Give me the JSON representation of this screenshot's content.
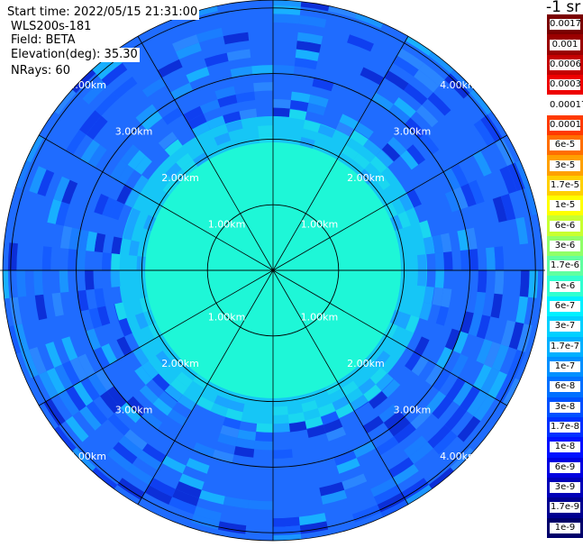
{
  "header": {
    "start_time": "Start time: 2022/05/15 21:31:00",
    "device": "WLS200s-181",
    "field": "Field: BETA",
    "elevation": "Elevation(deg): 35.30",
    "nrays": "NRays: 60"
  },
  "colorbar": {
    "units": "-1 sr",
    "labels": [
      "0.0017",
      "0.001",
      "0.0006",
      "0.0003",
      "0.00017",
      "0.0001",
      "6e-5",
      "3e-5",
      "1.7e-5",
      "1e-5",
      "6e-6",
      "3e-6",
      "1.7e-6",
      "1e-6",
      "6e-7",
      "3e-7",
      "1.7e-7",
      "1e-7",
      "6e-8",
      "3e-8",
      "1.7e-8",
      "1e-8",
      "6e-9",
      "3e-9",
      "1.7e-9",
      "1e-9"
    ],
    "colors": [
      "#7a0000",
      "#9a0000",
      "#c40000",
      "#ee0000",
      "#ffffff",
      "#ff3a00",
      "#ff6e00",
      "#ffa000",
      "#ffd000",
      "#ffff00",
      "#c8ff30",
      "#90ff68",
      "#60ffa0",
      "#30ffd0",
      "#00f0ff",
      "#00d0ff",
      "#00b0ff",
      "#0090ff",
      "#0070ff",
      "#0050ff",
      "#0030ff",
      "#0010ff",
      "#0000e0",
      "#0000b8",
      "#000090",
      "#00006a"
    ]
  },
  "chart_data": {
    "type": "heatmap",
    "projection": "polar (plan position indicator)",
    "field": "BETA",
    "elevation_deg": 35.3,
    "nrays": 60,
    "range_rings_km": [
      1,
      2,
      3,
      4
    ],
    "ring_labels": [
      "1.00km",
      "2.00km",
      "3.00km",
      "4.00km"
    ],
    "max_range_km": 4.12,
    "azimuth_spokes_deg": [
      0,
      30,
      60,
      90,
      120,
      150,
      180,
      210,
      240,
      270,
      300,
      330
    ],
    "value_profile": [
      {
        "range_km": [
          0.0,
          1.95
        ],
        "beta": "3e-7",
        "color": "#1ef7d7"
      },
      {
        "range_km": [
          1.95,
          2.35
        ],
        "beta": "1.7e-7",
        "color": "#16c6f6"
      },
      {
        "range_km": [
          2.35,
          4.12
        ],
        "beta": "6e-8",
        "color": "#1f6cff"
      }
    ],
    "color_levels": [
      "1e-9",
      "1.7e-9",
      "3e-9",
      "6e-9",
      "1e-8",
      "1.7e-8",
      "3e-8",
      "6e-8",
      "1e-7",
      "1.7e-7",
      "3e-7",
      "6e-7",
      "1e-6",
      "1.7e-6",
      "3e-6",
      "6e-6",
      "1e-5",
      "1.7e-5",
      "3e-5",
      "6e-5",
      "0.0001",
      "0.00017",
      "0.0003",
      "0.0006",
      "0.001",
      "0.0017"
    ]
  }
}
